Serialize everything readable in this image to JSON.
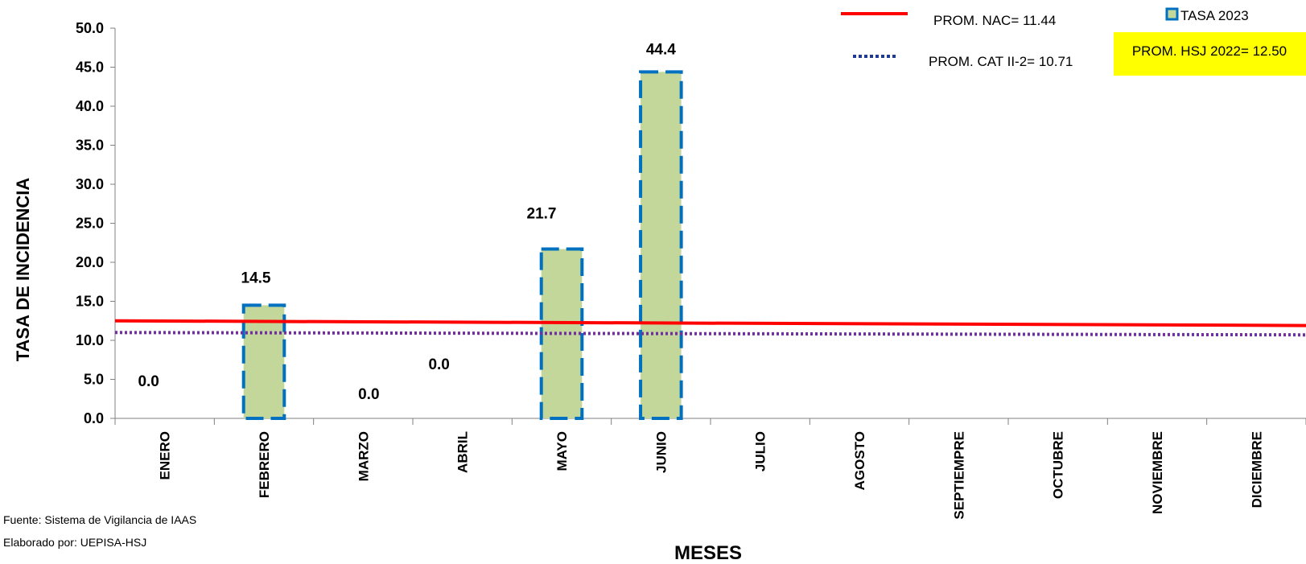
{
  "chart_data": {
    "type": "bar",
    "categories": [
      "ENERO",
      "FEBRERO",
      "MARZO",
      "ABRIL",
      "MAYO",
      "JUNIO",
      "JULIO",
      "AGOSTO",
      "SEPTIEMPRE",
      "OCTUBRE",
      "NOVIEMBRE",
      "DICIEMBRE"
    ],
    "series": [
      {
        "name": "TASA 2023",
        "values": [
          0.0,
          14.5,
          0.0,
          0.0,
          21.7,
          44.4,
          null,
          null,
          null,
          null,
          null,
          null
        ],
        "data_labels": [
          "0.0",
          "14.5",
          "0.0",
          "0.0",
          "21.7",
          "44.4",
          "",
          "",
          "",
          "",
          "",
          ""
        ],
        "color": "#c4d79b",
        "border_color": "#0070c0"
      }
    ],
    "reference_lines": [
      {
        "name": "PROM. NAC= 11.44",
        "start": 12.5,
        "end": 11.9,
        "color": "#ff0000",
        "style": "solid"
      },
      {
        "name": "PROM. CAT  II-2= 10.71",
        "start": 11.0,
        "end": 10.7,
        "color": "#7030a0",
        "style": "dotted"
      }
    ],
    "highlight_box": {
      "text": "PROM. HSJ 2022= 12.50",
      "background": "#ffff00"
    },
    "xlabel": "MESES",
    "ylabel": "TASA DE INCIDENCIA",
    "ylim": [
      0,
      50
    ],
    "yticks": [
      "0.0",
      "5.0",
      "10.0",
      "15.0",
      "20.0",
      "25.0",
      "30.0",
      "35.0",
      "40.0",
      "45.0",
      "50.0"
    ],
    "legend_position": "top-right",
    "grid": false
  },
  "footnotes": {
    "source": "Fuente: Sistema de Vigilancia de IAAS",
    "author": "Elaborado por: UEPISA-HSJ"
  }
}
